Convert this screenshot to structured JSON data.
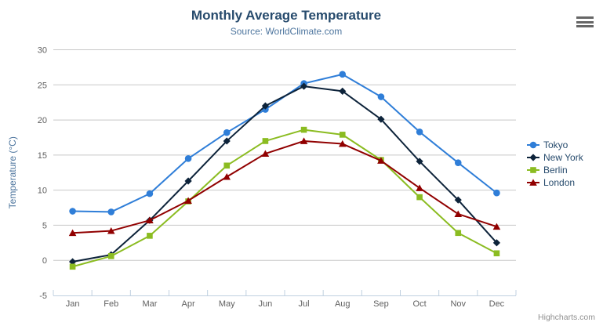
{
  "chart_data": {
    "type": "line",
    "title": "Monthly Average Temperature",
    "subtitle": "Source: WorldClimate.com",
    "ylabel": "Temperature (°C)",
    "ylim": [
      -5,
      30
    ],
    "ytick_interval": 5,
    "yticks": [
      -5,
      0,
      5,
      10,
      15,
      20,
      25,
      30
    ],
    "categories": [
      "Jan",
      "Feb",
      "Mar",
      "Apr",
      "May",
      "Jun",
      "Jul",
      "Aug",
      "Sep",
      "Oct",
      "Nov",
      "Dec"
    ],
    "grid": true,
    "legend_position": "right",
    "series": [
      {
        "name": "Tokyo",
        "color": "#2f7ed8",
        "marker": "circle",
        "values": [
          7.0,
          6.9,
          9.5,
          14.5,
          18.2,
          21.5,
          25.2,
          26.5,
          23.3,
          18.3,
          13.9,
          9.6
        ]
      },
      {
        "name": "New York",
        "color": "#0d233a",
        "marker": "diamond",
        "values": [
          -0.2,
          0.8,
          5.7,
          11.3,
          17.0,
          22.0,
          24.8,
          24.1,
          20.1,
          14.1,
          8.6,
          2.5
        ]
      },
      {
        "name": "Berlin",
        "color": "#8bbc21",
        "marker": "square",
        "values": [
          -0.9,
          0.6,
          3.5,
          8.4,
          13.5,
          17.0,
          18.6,
          17.9,
          14.3,
          9.0,
          3.9,
          1.0
        ]
      },
      {
        "name": "London",
        "color": "#910000",
        "marker": "triangle",
        "values": [
          3.9,
          4.2,
          5.7,
          8.5,
          11.9,
          15.2,
          17.0,
          16.6,
          14.2,
          10.3,
          6.6,
          4.8
        ]
      }
    ],
    "colors": {
      "grid_line": "#c8c8c8",
      "axis_line": "#c0d0e0",
      "tick": "#c0d0e0",
      "axis_label": "#606060",
      "axis_title": "#4d759e",
      "title": "#274b6d",
      "subtitle": "#4d759e",
      "legend_text": "#274b6d"
    }
  },
  "credits": {
    "label": "Highcharts.com"
  },
  "icons": {
    "context_menu": "hamburger-icon"
  }
}
